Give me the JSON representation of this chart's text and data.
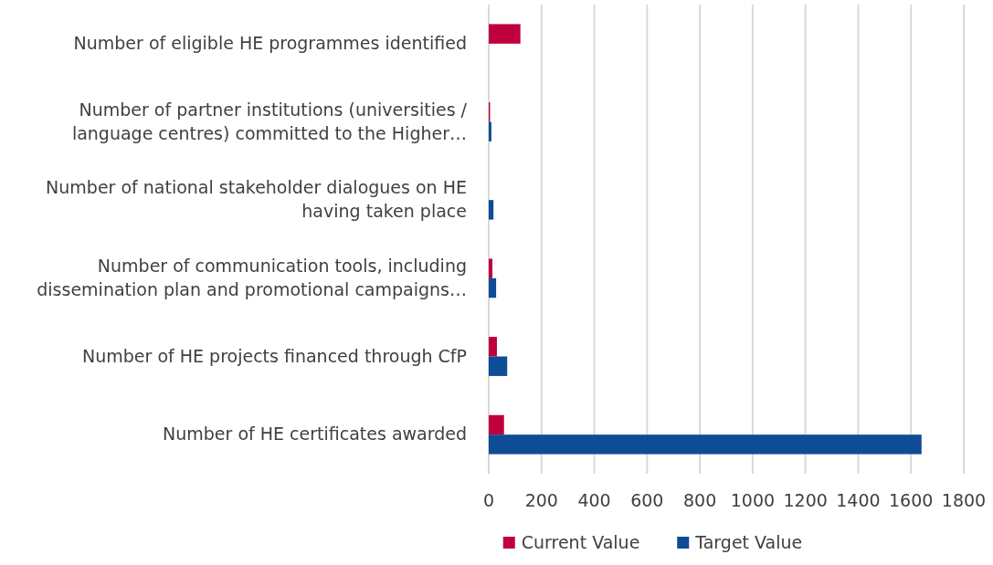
{
  "chart_data": {
    "type": "bar",
    "orientation": "horizontal",
    "categories": [
      "Number of eligible HE programmes identified",
      "Number of partner institutions (universities / language centres) committed to the Higher…",
      "Number of national stakeholder dialogues on HE having taken place",
      "Number of communication tools, including dissemination plan and promotional campaigns…",
      "Number of HE projects financed through CfP",
      "Number of HE certificates awarded"
    ],
    "series": [
      {
        "name": "Current Value",
        "color": "#c0003c",
        "values": [
          120,
          5,
          null,
          14,
          31,
          58
        ]
      },
      {
        "name": "Target Value",
        "color": "#0e4c96",
        "values": [
          null,
          10,
          18,
          28,
          70,
          1640
        ]
      }
    ],
    "xlim": [
      0,
      1800
    ],
    "xticks": [
      0,
      200,
      400,
      600,
      800,
      1000,
      1200,
      1400,
      1600,
      1800
    ],
    "grid": "x",
    "legend": "bottom"
  }
}
